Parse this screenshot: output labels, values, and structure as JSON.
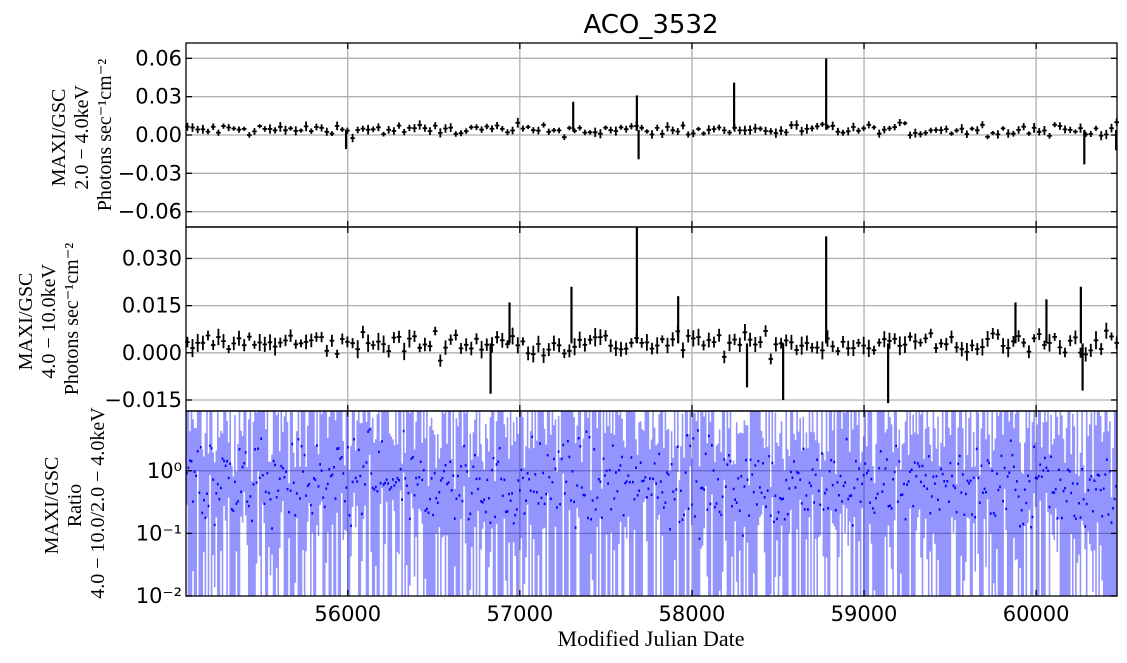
{
  "chart_data": {
    "type": "line",
    "title": "ACO_3532",
    "xlabel": "Modified Julian Date",
    "xlim": [
      55060,
      60470
    ],
    "xticks": [
      56000,
      57000,
      58000,
      59000,
      60000
    ],
    "xtick_labels": [
      "56000",
      "57000",
      "58000",
      "59000",
      "60000"
    ],
    "grid": true,
    "panels": [
      {
        "name": "panel-soft",
        "ylabel_lines": [
          "MAXI/GSC",
          "2.0 − 4.0keV",
          "Photons sec⁻¹cm⁻²"
        ],
        "ylim": [
          -0.072,
          0.072
        ],
        "yscale": "linear",
        "yticks": [
          -0.06,
          -0.03,
          0.0,
          0.03,
          0.06
        ],
        "ytick_labels": [
          "−0.06",
          "−0.03",
          "0.00",
          "0.03",
          "0.06"
        ],
        "color": "#000000",
        "baseline": 0.004,
        "noise": 0.0045,
        "spikes": [
          {
            "x": 55990,
            "y": -0.011
          },
          {
            "x": 57310,
            "y": 0.026
          },
          {
            "x": 57680,
            "y": 0.031
          },
          {
            "x": 57690,
            "y": -0.019
          },
          {
            "x": 58245,
            "y": 0.041
          },
          {
            "x": 58780,
            "y": 0.06
          },
          {
            "x": 60280,
            "y": -0.023
          },
          {
            "x": 60465,
            "y": -0.012
          }
        ]
      },
      {
        "name": "panel-hard",
        "ylabel_lines": [
          "MAXI/GSC",
          "4.0 − 10.0keV",
          "Photons sec⁻¹cm⁻²"
        ],
        "ylim": [
          -0.0185,
          0.04
        ],
        "yscale": "linear",
        "yticks": [
          -0.015,
          0.0,
          0.015,
          0.03
        ],
        "ytick_labels": [
          "−0.015",
          "0.000",
          "0.015",
          "0.030"
        ],
        "color": "#000000",
        "baseline": 0.003,
        "noise": 0.0035,
        "spikes": [
          {
            "x": 56830,
            "y": -0.013
          },
          {
            "x": 56940,
            "y": 0.016
          },
          {
            "x": 57300,
            "y": 0.021
          },
          {
            "x": 57680,
            "y": 0.04
          },
          {
            "x": 57920,
            "y": 0.018
          },
          {
            "x": 58320,
            "y": -0.011
          },
          {
            "x": 58530,
            "y": -0.015
          },
          {
            "x": 58780,
            "y": 0.037
          },
          {
            "x": 59140,
            "y": -0.016
          },
          {
            "x": 59880,
            "y": 0.016
          },
          {
            "x": 60060,
            "y": 0.017
          },
          {
            "x": 60260,
            "y": 0.021
          },
          {
            "x": 60270,
            "y": -0.012
          }
        ]
      },
      {
        "name": "panel-ratio",
        "ylabel_lines": [
          "MAXI/GSC",
          "Ratio",
          "4.0 − 10.0/2.0 − 4.0keV"
        ],
        "ylim": [
          0.01,
          9.0
        ],
        "yscale": "log",
        "yticks": [
          0.01,
          0.1,
          1.0
        ],
        "ytick_labels": [
          "10⁻²",
          "10⁻¹",
          "10⁰"
        ],
        "color": "#0000ff",
        "typical_ratio": 0.6
      }
    ]
  }
}
